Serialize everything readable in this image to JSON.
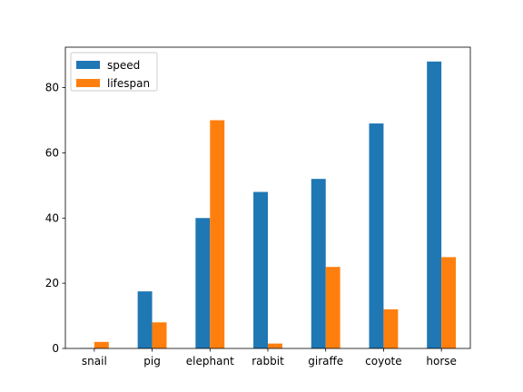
{
  "chart_data": {
    "type": "bar",
    "categories": [
      "snail",
      "pig",
      "elephant",
      "rabbit",
      "giraffe",
      "coyote",
      "horse"
    ],
    "series": [
      {
        "name": "speed",
        "color": "#1f77b4",
        "values": [
          0.1,
          17.5,
          40,
          48,
          52,
          69,
          88
        ]
      },
      {
        "name": "lifespan",
        "color": "#ff7f0e",
        "values": [
          2,
          8,
          70,
          1.5,
          25,
          12,
          28
        ]
      }
    ],
    "title": "",
    "xlabel": "",
    "ylabel": "",
    "ylim": [
      0,
      92.4
    ],
    "yticks": [
      0,
      20,
      40,
      60,
      80
    ],
    "grid": false,
    "legend_position": "top-left"
  }
}
